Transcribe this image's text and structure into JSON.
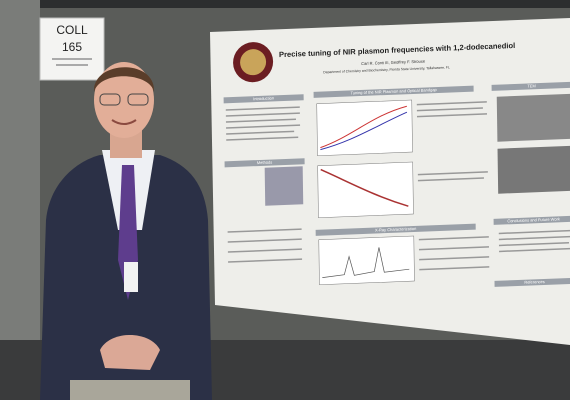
{
  "sign": {
    "title": "COLL",
    "number": "165"
  },
  "poster": {
    "title": "Precise tuning of NIR plasmon frequencies with 1,2-dodecanediol",
    "authors": "Carl R. Conti III, Geoffrey F. Strouse",
    "affiliation": "Department of Chemistry and Biochemistry, Florida State University, Tallahassee, FL",
    "sections": [
      "Introduction",
      "Tuning of the NIR Plasmon and Optical Bandgap",
      "Methods",
      "X-Ray Characterization",
      "TEM",
      "Conclusions and Future Work",
      "References"
    ]
  }
}
